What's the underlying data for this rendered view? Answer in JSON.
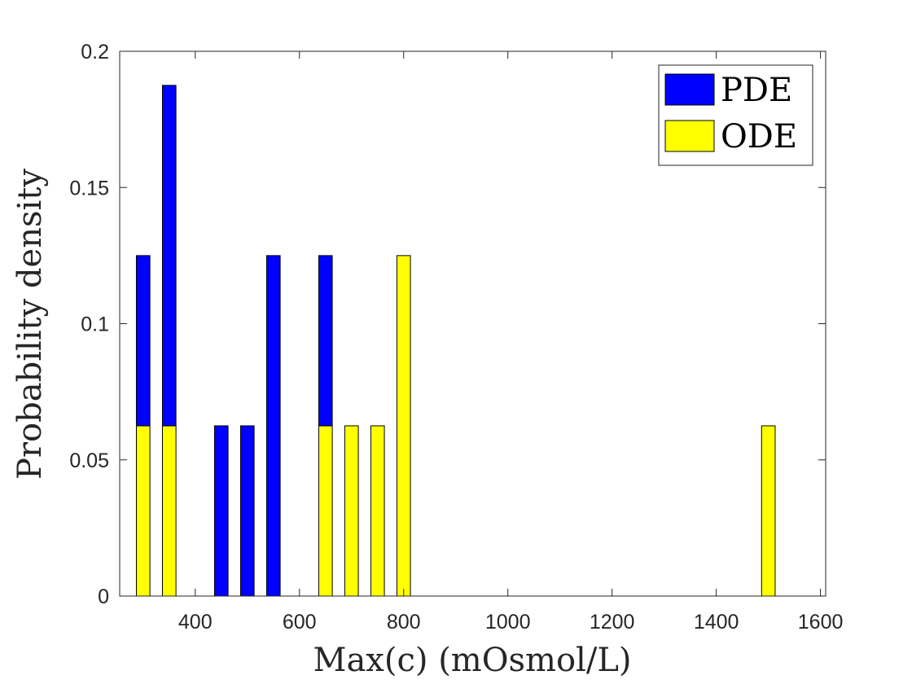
{
  "chart_data": {
    "type": "bar",
    "stacked": true,
    "title": "",
    "xlabel": "Max(c) (mOsmol/L)",
    "ylabel": "Probability density",
    "xlim": [
      255,
      1610
    ],
    "ylim": [
      0,
      0.2
    ],
    "xticks": [
      400,
      600,
      800,
      1000,
      1200,
      1400,
      1600
    ],
    "yticks": [
      0,
      0.05,
      0.1,
      0.15,
      0.2
    ],
    "xtick_labels": [
      "400",
      "600",
      "800",
      "1000",
      "1200",
      "1400",
      "1600"
    ],
    "ytick_labels": [
      "0",
      "0.05",
      "0.1",
      "0.15",
      "0.2"
    ],
    "bin_width": 40,
    "legend_position": "top-right",
    "series": [
      {
        "name": "ODE",
        "color": "#ffff00",
        "x": [
          300,
          350,
          650,
          700,
          750,
          800,
          1500
        ],
        "values": [
          0.0625,
          0.0625,
          0.0625,
          0.0625,
          0.0625,
          0.125,
          0.0625
        ]
      },
      {
        "name": "PDE",
        "color": "#0000ff",
        "x": [
          300,
          350,
          450,
          500,
          550,
          650
        ],
        "values": [
          0.0625,
          0.125,
          0.0625,
          0.0625,
          0.125,
          0.0625
        ],
        "stacked_on": "ODE"
      }
    ],
    "legend": [
      {
        "name": "PDE",
        "color": "#0000ff"
      },
      {
        "name": "ODE",
        "color": "#ffff00"
      }
    ]
  }
}
